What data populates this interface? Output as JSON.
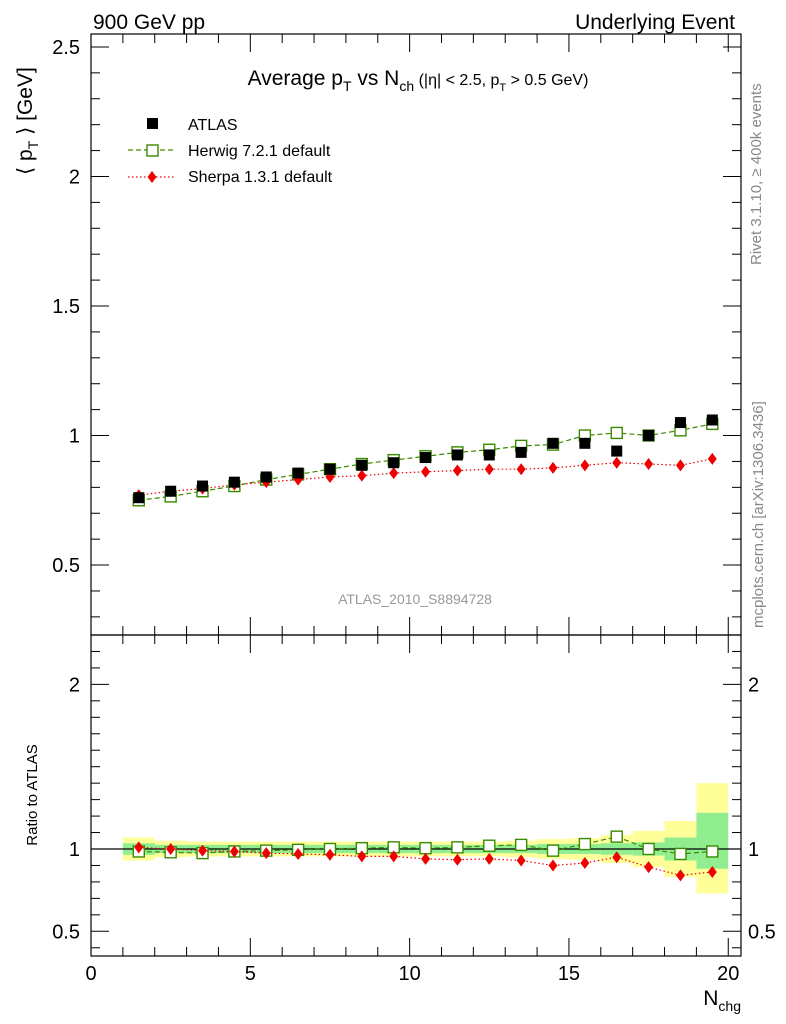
{
  "header": {
    "left": "900 GeV pp",
    "right": "Underlying Event"
  },
  "side_text": {
    "rivet": "Rivet 3.1.10, ≥ 400k events",
    "mcplots": "mcplots.cern.ch [arXiv:1306.3436]"
  },
  "chart_data": [
    {
      "type": "scatter",
      "title": {
        "prefix": "Average p",
        "p_sub": "T",
        "mid": " vs N",
        "n_sub": "ch",
        "small": " (|η| < 2.5, p",
        "small_sub": "T",
        "small_end": " > 0.5 GeV)"
      },
      "ylabel": {
        "open": "⟨ p",
        "sub": "T",
        "close": " ⟩ [GeV]"
      },
      "watermark": "ATLAS_2010_S8894728",
      "xlim": [
        0,
        20.4
      ],
      "ylim": [
        0.23,
        2.55
      ],
      "yticks": [
        0.5,
        1,
        1.5,
        2,
        2.5
      ],
      "ytick_labels": [
        "0.5",
        "1",
        "1.5",
        "2",
        "2.5"
      ],
      "legend_position": "top-left",
      "series": [
        {
          "name": "ATLAS",
          "color": "#000000",
          "marker": "filled-square",
          "x": [
            1.5,
            2.5,
            3.5,
            4.5,
            5.5,
            6.5,
            7.5,
            8.5,
            9.5,
            10.5,
            11.5,
            12.5,
            13.5,
            14.5,
            15.5,
            16.5,
            17.5,
            18.5,
            19.5
          ],
          "y": [
            0.76,
            0.785,
            0.805,
            0.82,
            0.84,
            0.855,
            0.87,
            0.885,
            0.895,
            0.915,
            0.925,
            0.925,
            0.935,
            0.97,
            0.97,
            0.94,
            1.0,
            1.05,
            1.06
          ]
        },
        {
          "name": "Herwig 7.2.1 default",
          "color": "#3a8a00",
          "marker": "open-square",
          "line": "dashed",
          "x": [
            1.5,
            2.5,
            3.5,
            4.5,
            5.5,
            6.5,
            7.5,
            8.5,
            9.5,
            10.5,
            11.5,
            12.5,
            13.5,
            14.5,
            15.5,
            16.5,
            17.5,
            18.5,
            19.5
          ],
          "y": [
            0.75,
            0.765,
            0.785,
            0.805,
            0.83,
            0.85,
            0.87,
            0.89,
            0.905,
            0.92,
            0.935,
            0.945,
            0.96,
            0.965,
            1.0,
            1.01,
            1.0,
            1.02,
            1.045
          ]
        },
        {
          "name": "Sherpa 1.3.1 default",
          "color": "#ee0000",
          "marker": "filled-diamond",
          "line": "dotted",
          "x": [
            1.5,
            2.5,
            3.5,
            4.5,
            5.5,
            6.5,
            7.5,
            8.5,
            9.5,
            10.5,
            11.5,
            12.5,
            13.5,
            14.5,
            15.5,
            16.5,
            17.5,
            18.5,
            19.5
          ],
          "y": [
            0.77,
            0.785,
            0.795,
            0.81,
            0.82,
            0.83,
            0.84,
            0.845,
            0.855,
            0.86,
            0.865,
            0.87,
            0.87,
            0.875,
            0.885,
            0.895,
            0.89,
            0.885,
            0.91
          ]
        }
      ]
    },
    {
      "type": "scatter",
      "ylabel": "Ratio to ATLAS",
      "xlabel": {
        "main": "N",
        "sub": "chg"
      },
      "xlim": [
        0,
        20.4
      ],
      "ylim": [
        0.35,
        2.3
      ],
      "xticks": [
        0,
        5,
        10,
        15,
        20
      ],
      "xtick_labels": [
        "0",
        "5",
        "10",
        "15",
        "20"
      ],
      "yticks": [
        0.5,
        1,
        2
      ],
      "ytick_labels": [
        "0.5",
        "1",
        "2"
      ],
      "bands": {
        "x_edges": [
          1,
          2,
          3,
          4,
          5,
          6,
          7,
          8,
          9,
          10,
          11,
          12,
          13,
          14,
          15,
          16,
          17,
          18,
          19,
          20
        ],
        "green": [
          [
            0.965,
            1.035
          ],
          [
            0.975,
            1.025
          ],
          [
            0.975,
            1.025
          ],
          [
            0.975,
            1.025
          ],
          [
            0.975,
            1.025
          ],
          [
            0.975,
            1.025
          ],
          [
            0.975,
            1.025
          ],
          [
            0.975,
            1.025
          ],
          [
            0.975,
            1.025
          ],
          [
            0.975,
            1.025
          ],
          [
            0.975,
            1.025
          ],
          [
            0.975,
            1.025
          ],
          [
            0.975,
            1.025
          ],
          [
            0.97,
            1.03
          ],
          [
            0.97,
            1.03
          ],
          [
            0.965,
            1.035
          ],
          [
            0.96,
            1.04
          ],
          [
            0.93,
            1.07
          ],
          [
            0.88,
            1.22
          ]
        ],
        "yellow": [
          [
            0.93,
            1.07
          ],
          [
            0.95,
            1.05
          ],
          [
            0.955,
            1.045
          ],
          [
            0.955,
            1.045
          ],
          [
            0.955,
            1.045
          ],
          [
            0.955,
            1.045
          ],
          [
            0.955,
            1.045
          ],
          [
            0.955,
            1.045
          ],
          [
            0.955,
            1.045
          ],
          [
            0.955,
            1.045
          ],
          [
            0.955,
            1.045
          ],
          [
            0.955,
            1.045
          ],
          [
            0.95,
            1.05
          ],
          [
            0.94,
            1.06
          ],
          [
            0.935,
            1.065
          ],
          [
            0.915,
            1.085
          ],
          [
            0.89,
            1.11
          ],
          [
            0.83,
            1.17
          ],
          [
            0.73,
            1.4
          ]
        ]
      },
      "series": [
        {
          "name": "Herwig 7.2.1 default",
          "color": "#3a8a00",
          "marker": "open-square",
          "line": "dashed",
          "x": [
            1.5,
            2.5,
            3.5,
            4.5,
            5.5,
            6.5,
            7.5,
            8.5,
            9.5,
            10.5,
            11.5,
            12.5,
            13.5,
            14.5,
            15.5,
            16.5,
            17.5,
            18.5,
            19.5
          ],
          "y": [
            0.985,
            0.98,
            0.975,
            0.985,
            0.99,
            0.995,
            1.0,
            1.005,
            1.01,
            1.005,
            1.01,
            1.02,
            1.025,
            0.99,
            1.03,
            1.075,
            1.0,
            0.97,
            0.985
          ]
        },
        {
          "name": "Sherpa 1.3.1 default",
          "color": "#ee0000",
          "marker": "filled-diamond",
          "line": "dotted",
          "x": [
            1.5,
            2.5,
            3.5,
            4.5,
            5.5,
            6.5,
            7.5,
            8.5,
            9.5,
            10.5,
            11.5,
            12.5,
            13.5,
            14.5,
            15.5,
            16.5,
            17.5,
            18.5,
            19.5
          ],
          "y": [
            1.01,
            1.0,
            0.99,
            0.985,
            0.975,
            0.97,
            0.965,
            0.955,
            0.955,
            0.94,
            0.935,
            0.94,
            0.93,
            0.9,
            0.915,
            0.95,
            0.89,
            0.84,
            0.86
          ]
        }
      ]
    }
  ]
}
